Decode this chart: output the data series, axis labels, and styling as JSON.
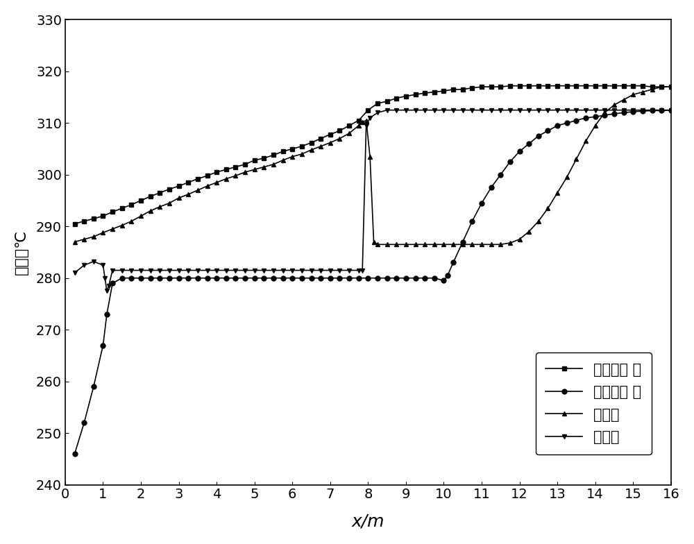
{
  "xlabel": "x/m",
  "ylabel": "温度／℃",
  "xlim": [
    0,
    16
  ],
  "ylim": [
    240,
    330
  ],
  "yticks": [
    240,
    250,
    260,
    270,
    280,
    290,
    300,
    310,
    320,
    330
  ],
  "xticks": [
    0,
    1,
    2,
    3,
    4,
    5,
    6,
    7,
    8,
    9,
    10,
    11,
    12,
    13,
    14,
    15,
    16
  ],
  "legend_labels": [
    "一次侧流 体",
    "二次侧流 体",
    "管内壁",
    "管外壁"
  ],
  "series1_x": [
    0.25,
    0.5,
    0.75,
    1.0,
    1.25,
    1.5,
    1.75,
    2.0,
    2.25,
    2.5,
    2.75,
    3.0,
    3.25,
    3.5,
    3.75,
    4.0,
    4.25,
    4.5,
    4.75,
    5.0,
    5.25,
    5.5,
    5.75,
    6.0,
    6.25,
    6.5,
    6.75,
    7.0,
    7.25,
    7.5,
    7.75,
    8.0,
    8.25,
    8.5,
    8.75,
    9.0,
    9.25,
    9.5,
    9.75,
    10.0,
    10.25,
    10.5,
    10.75,
    11.0,
    11.25,
    11.5,
    11.75,
    12.0,
    12.25,
    12.5,
    12.75,
    13.0,
    13.25,
    13.5,
    13.75,
    14.0,
    14.25,
    14.5,
    14.75,
    15.0,
    15.25,
    15.5,
    15.75,
    16.0
  ],
  "series1_y": [
    290.5,
    291.0,
    291.5,
    292.0,
    292.8,
    293.5,
    294.2,
    295.0,
    295.8,
    296.5,
    297.2,
    297.8,
    298.5,
    299.2,
    299.8,
    300.5,
    301.0,
    301.5,
    302.0,
    302.8,
    303.2,
    303.8,
    304.5,
    305.0,
    305.5,
    306.2,
    307.0,
    307.8,
    308.5,
    309.5,
    310.5,
    312.5,
    313.8,
    314.2,
    314.8,
    315.2,
    315.5,
    315.8,
    316.0,
    316.2,
    316.5,
    316.5,
    316.8,
    317.0,
    317.0,
    317.0,
    317.2,
    317.2,
    317.2,
    317.2,
    317.2,
    317.2,
    317.2,
    317.2,
    317.2,
    317.2,
    317.2,
    317.2,
    317.2,
    317.2,
    317.2,
    317.0,
    317.0,
    317.0
  ],
  "series2_x": [
    0.25,
    0.5,
    0.75,
    1.0,
    1.1,
    1.25,
    1.5,
    1.75,
    2.0,
    2.25,
    2.5,
    2.75,
    3.0,
    3.25,
    3.5,
    3.75,
    4.0,
    4.25,
    4.5,
    4.75,
    5.0,
    5.25,
    5.5,
    5.75,
    6.0,
    6.25,
    6.5,
    6.75,
    7.0,
    7.25,
    7.5,
    7.75,
    8.0,
    8.25,
    8.5,
    8.75,
    9.0,
    9.25,
    9.5,
    9.75,
    10.0,
    10.1,
    10.25,
    10.5,
    10.75,
    11.0,
    11.25,
    11.5,
    11.75,
    12.0,
    12.25,
    12.5,
    12.75,
    13.0,
    13.25,
    13.5,
    13.75,
    14.0,
    14.25,
    14.5,
    14.75,
    15.0,
    15.25,
    15.5,
    15.75,
    16.0
  ],
  "series2_y": [
    246.0,
    252.0,
    259.0,
    267.0,
    273.0,
    279.0,
    280.0,
    280.0,
    280.0,
    280.0,
    280.0,
    280.0,
    280.0,
    280.0,
    280.0,
    280.0,
    280.0,
    280.0,
    280.0,
    280.0,
    280.0,
    280.0,
    280.0,
    280.0,
    280.0,
    280.0,
    280.0,
    280.0,
    280.0,
    280.0,
    280.0,
    280.0,
    280.0,
    280.0,
    280.0,
    280.0,
    280.0,
    280.0,
    280.0,
    280.0,
    279.5,
    280.5,
    283.0,
    287.0,
    291.0,
    294.5,
    297.5,
    300.0,
    302.5,
    304.5,
    306.0,
    307.5,
    308.5,
    309.5,
    310.0,
    310.5,
    311.0,
    311.2,
    311.5,
    311.8,
    312.0,
    312.2,
    312.3,
    312.4,
    312.4,
    312.5
  ],
  "series3_x": [
    0.25,
    0.5,
    0.75,
    1.0,
    1.25,
    1.5,
    1.75,
    2.0,
    2.25,
    2.5,
    2.75,
    3.0,
    3.25,
    3.5,
    3.75,
    4.0,
    4.25,
    4.5,
    4.75,
    5.0,
    5.25,
    5.5,
    5.75,
    6.0,
    6.25,
    6.5,
    6.75,
    7.0,
    7.25,
    7.5,
    7.75,
    7.85,
    7.95,
    8.05,
    8.15,
    8.25,
    8.5,
    8.75,
    9.0,
    9.25,
    9.5,
    9.75,
    10.0,
    10.25,
    10.5,
    10.75,
    11.0,
    11.25,
    11.5,
    11.75,
    12.0,
    12.25,
    12.5,
    12.75,
    13.0,
    13.25,
    13.5,
    13.75,
    14.0,
    14.25,
    14.5,
    14.75,
    15.0,
    15.25,
    15.5,
    15.75,
    16.0
  ],
  "series3_y": [
    287.0,
    287.5,
    288.0,
    288.8,
    289.5,
    290.2,
    291.0,
    292.0,
    293.0,
    293.8,
    294.5,
    295.5,
    296.2,
    297.0,
    297.8,
    298.5,
    299.2,
    299.8,
    300.5,
    301.0,
    301.5,
    302.0,
    302.8,
    303.5,
    304.0,
    304.8,
    305.5,
    306.2,
    307.0,
    308.0,
    309.5,
    310.2,
    310.5,
    303.5,
    287.0,
    286.5,
    286.5,
    286.5,
    286.5,
    286.5,
    286.5,
    286.5,
    286.5,
    286.5,
    286.5,
    286.5,
    286.5,
    286.5,
    286.5,
    286.8,
    287.5,
    289.0,
    291.0,
    293.5,
    296.5,
    299.5,
    303.0,
    306.5,
    309.5,
    312.0,
    313.5,
    314.5,
    315.5,
    316.0,
    316.5,
    317.0,
    317.0
  ],
  "series4_x": [
    0.25,
    0.5,
    0.75,
    1.0,
    1.05,
    1.1,
    1.15,
    1.25,
    1.5,
    1.75,
    2.0,
    2.25,
    2.5,
    2.75,
    3.0,
    3.25,
    3.5,
    3.75,
    4.0,
    4.25,
    4.5,
    4.75,
    5.0,
    5.25,
    5.5,
    5.75,
    6.0,
    6.25,
    6.5,
    6.75,
    7.0,
    7.25,
    7.5,
    7.75,
    7.85,
    7.95,
    8.05,
    8.25,
    8.5,
    8.75,
    9.0,
    9.25,
    9.5,
    9.75,
    10.0,
    10.25,
    10.5,
    10.75,
    11.0,
    11.25,
    11.5,
    11.75,
    12.0,
    12.25,
    12.5,
    12.75,
    13.0,
    13.25,
    13.5,
    13.75,
    14.0,
    14.25,
    14.5,
    14.75,
    15.0,
    15.25,
    15.5,
    15.75,
    16.0
  ],
  "series4_y": [
    281.0,
    282.5,
    283.2,
    282.5,
    280.0,
    277.5,
    278.5,
    281.5,
    281.5,
    281.5,
    281.5,
    281.5,
    281.5,
    281.5,
    281.5,
    281.5,
    281.5,
    281.5,
    281.5,
    281.5,
    281.5,
    281.5,
    281.5,
    281.5,
    281.5,
    281.5,
    281.5,
    281.5,
    281.5,
    281.5,
    281.5,
    281.5,
    281.5,
    281.5,
    281.5,
    309.5,
    311.0,
    312.0,
    312.5,
    312.5,
    312.5,
    312.5,
    312.5,
    312.5,
    312.5,
    312.5,
    312.5,
    312.5,
    312.5,
    312.5,
    312.5,
    312.5,
    312.5,
    312.5,
    312.5,
    312.5,
    312.5,
    312.5,
    312.5,
    312.5,
    312.5,
    312.5,
    312.5,
    312.5,
    312.5,
    312.5,
    312.5,
    312.5,
    312.5
  ],
  "line_color": "#000000",
  "marker_size": 5,
  "linewidth": 1.2
}
